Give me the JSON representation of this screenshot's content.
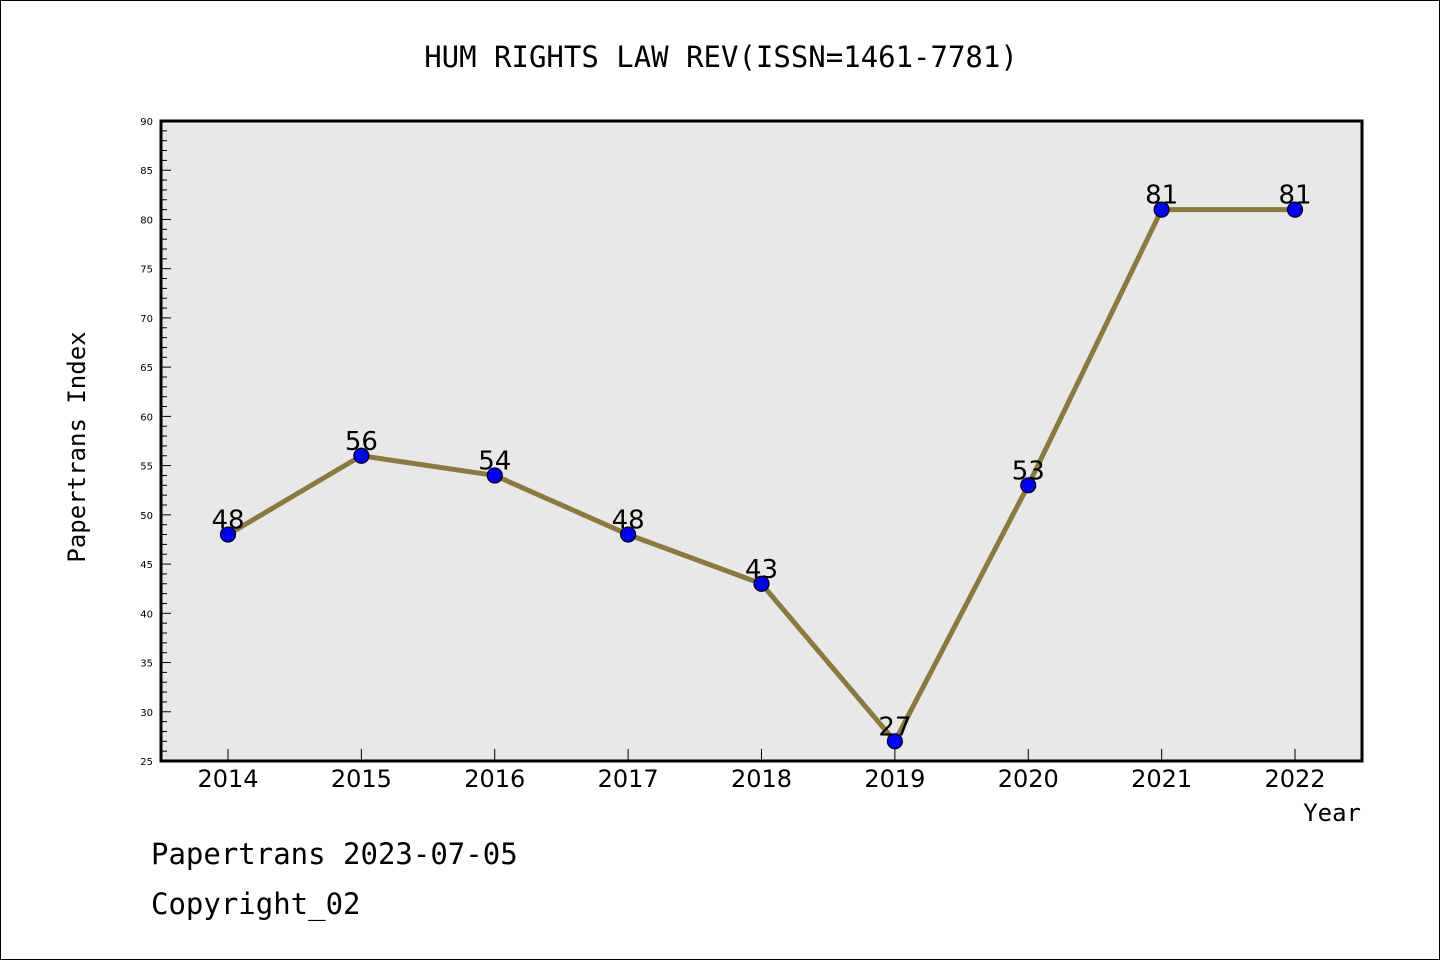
{
  "chart_data": {
    "type": "line",
    "title": "HUM RIGHTS LAW REV(ISSN=1461-7781)",
    "xlabel": "Year",
    "ylabel": "Papertrans Index",
    "categories": [
      "2014",
      "2015",
      "2016",
      "2017",
      "2018",
      "2019",
      "2020",
      "2021",
      "2022"
    ],
    "series": [
      {
        "values": [
          48,
          56,
          54,
          48,
          43,
          27,
          53,
          81,
          81
        ]
      }
    ],
    "data_labels": [
      "48",
      "56",
      "54",
      "48",
      "43",
      "27",
      "53",
      "81",
      "81"
    ],
    "ylim": [
      25,
      90
    ],
    "y_ticks": [
      "25",
      "30",
      "35",
      "40",
      "45",
      "50",
      "55",
      "60",
      "65",
      "70",
      "75",
      "80",
      "85",
      "90"
    ],
    "grid": false,
    "colors": {
      "line": "#8b7a3a",
      "marker": "#0000ff",
      "plot_background": "#e8e8e8"
    }
  },
  "footer": {
    "line1": "Papertrans 2023-07-05",
    "line2": "Copyright_02"
  }
}
